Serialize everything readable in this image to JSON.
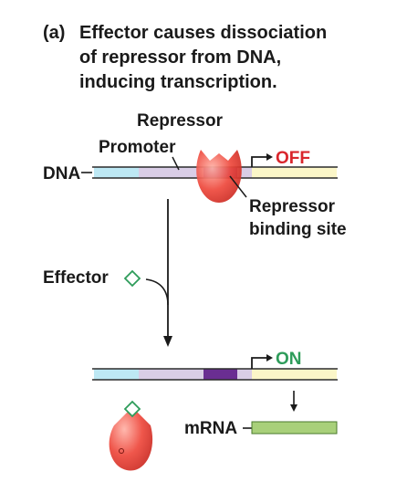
{
  "caption": {
    "label": "(a)",
    "lines": [
      "Effector causes dissociation",
      "of repressor from DNA,",
      "inducing transcription."
    ]
  },
  "labels": {
    "repressor": "Repressor",
    "promoter": "Promoter",
    "dna": "DNA",
    "off": "OFF",
    "on": "ON",
    "repressor_binding_site_line1": "Repressor",
    "repressor_binding_site_line2": "binding site",
    "effector": "Effector",
    "mrna": "mRNA"
  },
  "colors": {
    "dna_line": "#2b2b2b",
    "region_light_blue": "#bde8f4",
    "region_promoter": "#d9cde6",
    "region_binding_site": "#6a2e92",
    "region_gene": "#fbf6c8",
    "repressor_fill": "#e8443c",
    "effector_stroke": "#2e9c5a",
    "off_color": "#d9262c",
    "on_color": "#2e9c5a",
    "mrna_fill": "#a8d07a"
  }
}
